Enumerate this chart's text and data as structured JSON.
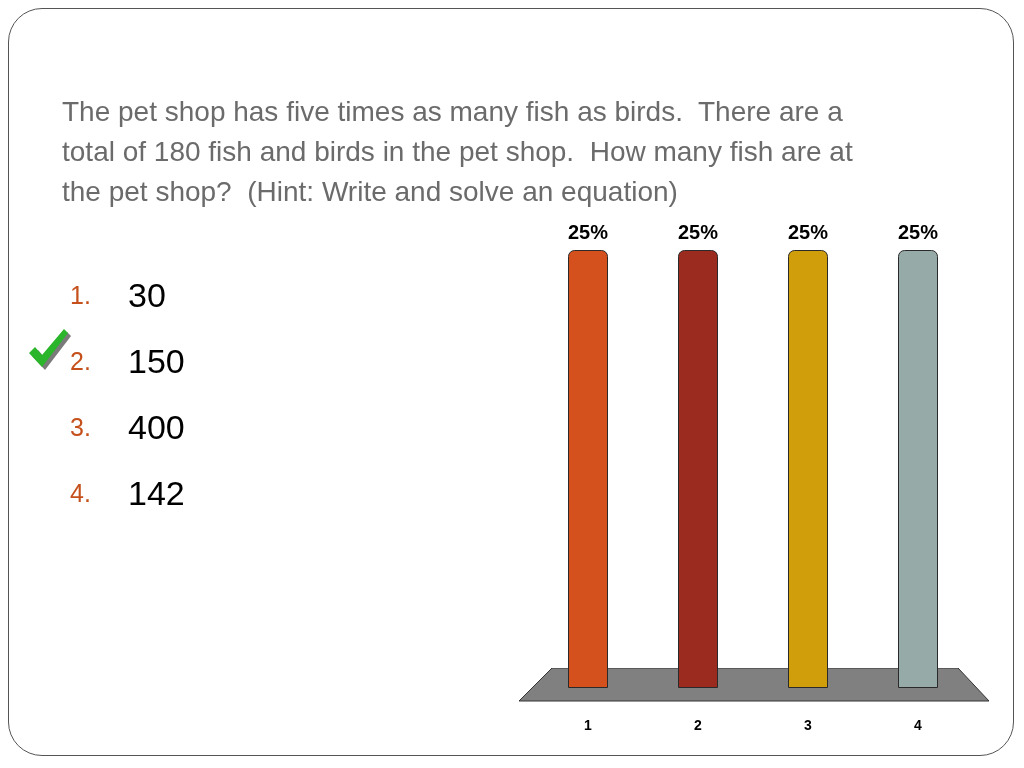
{
  "chart_data": {
    "type": "bar",
    "title": "The pet shop has five times as many fish as birds.  There are a total of 180 fish and birds in the pet shop.  How many fish are at the pet shop?  (Hint: Write and solve an equation)",
    "categories": [
      "1",
      "2",
      "3",
      "4"
    ],
    "values": [
      25,
      25,
      25,
      25
    ],
    "colors": [
      "#d4501d",
      "#9c2b1f",
      "#d09e0b",
      "#96aaa8"
    ],
    "value_labels": [
      "25%",
      "25%",
      "25%",
      "25%"
    ],
    "ylim": [
      0,
      25
    ],
    "tick_labels": "x",
    "grid": false,
    "annotations": [
      "1. 30",
      "2. 150",
      "3. 400",
      "4. 142"
    ]
  }
}
